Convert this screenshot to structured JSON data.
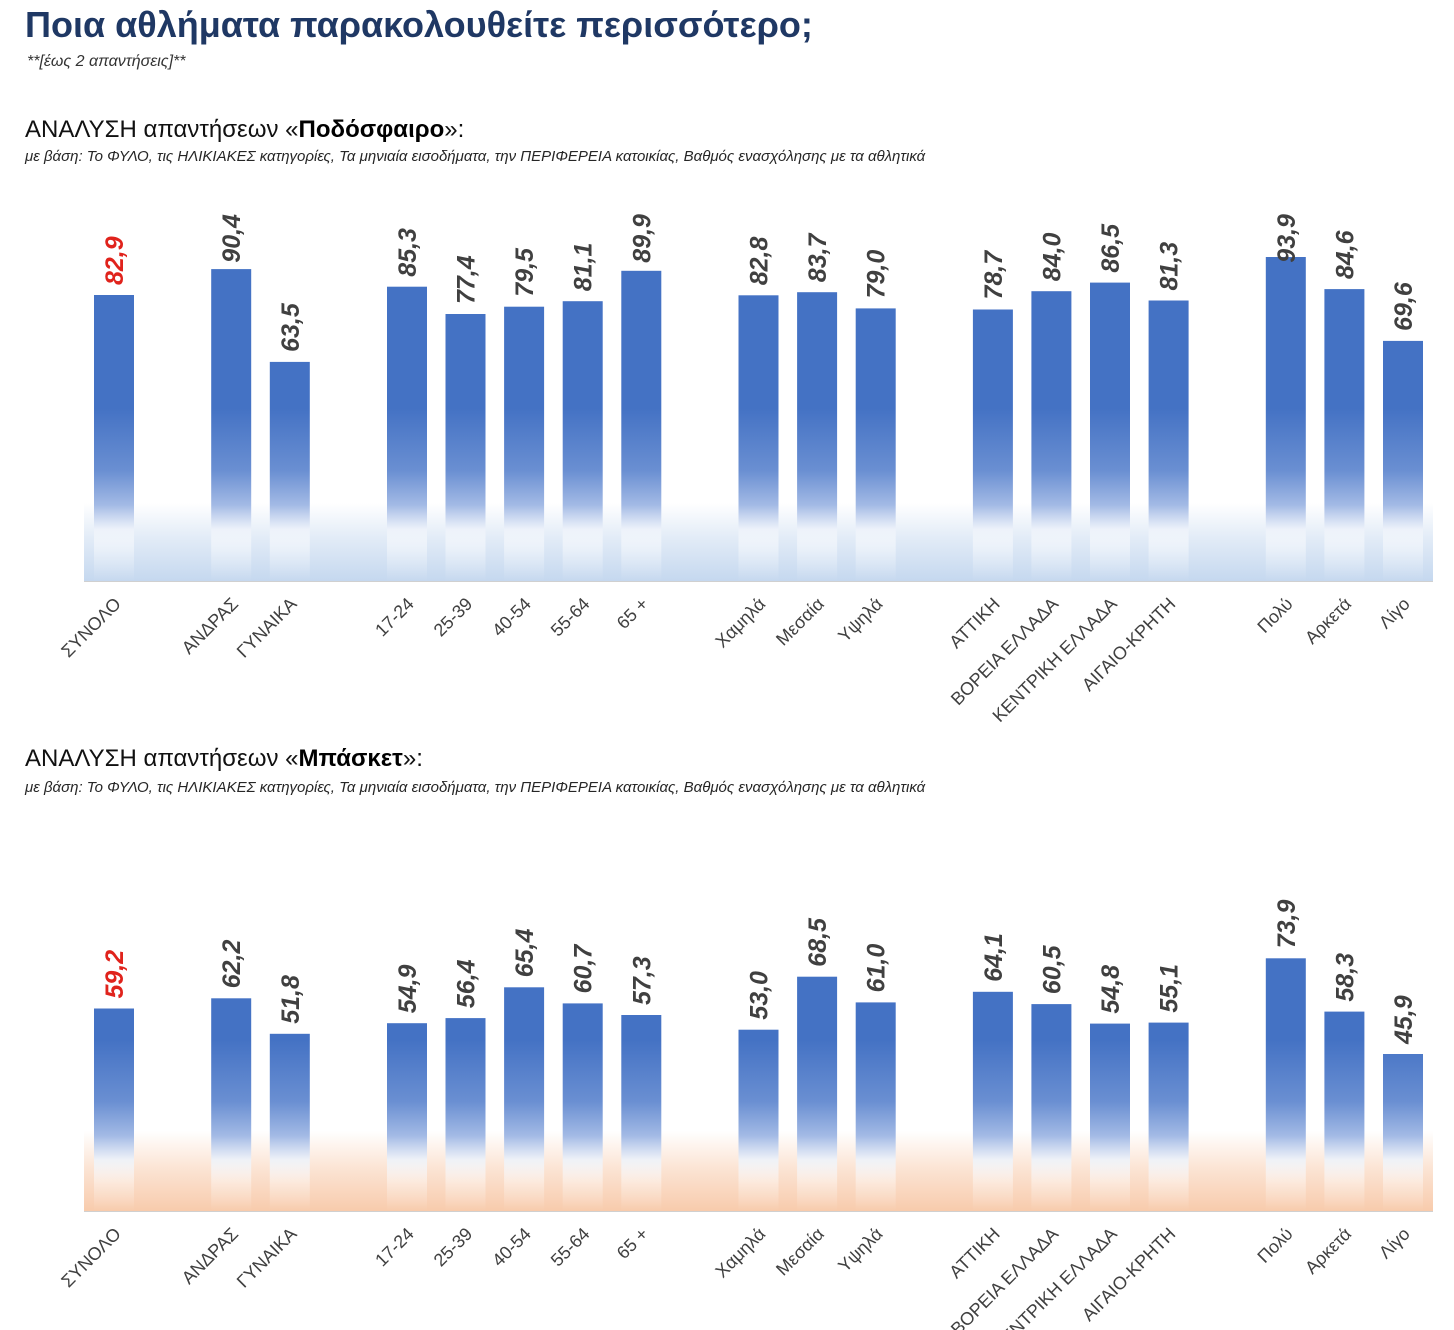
{
  "page": {
    "title": "Ποια αθλήματα παρακολουθείτε περισσότερο;",
    "note": "**[έως 2 απαντήσεις]**"
  },
  "colors": {
    "title": "#1f3864",
    "bar": "#4472c4",
    "value_label": "#404040",
    "total_label": "#e0231c",
    "category_label": "#404040"
  },
  "chart_data": [
    {
      "type": "bar",
      "title_prefix": "ΑΝΑΛΥΣΗ απαντήσεων «",
      "title_highlight": "Ποδόσφαιρο",
      "title_suffix": "»:",
      "subtitle": "με βάση: Το ΦΥΛΟ, τις ΗΛΙΚΙΑΚΕΣ κατηγορίες, Τα μηνιαία εισοδήματα, την ΠΕΡΙΦΕΡΕΙΑ κατοικίας, Βαθμός ενασχόλησης με τα αθλητικά",
      "xlabel": "",
      "ylabel": "",
      "ylim": [
        0,
        100
      ],
      "grid": false,
      "categories": [
        "ΣΥΝΟΛΟ",
        "ΑΝΔΡΑΣ",
        "ΓΥΝΑΙΚΑ",
        "17-24",
        "25-39",
        "40-54",
        "55-64",
        "65 +",
        "Χαμηλά",
        "Μεσαία",
        "Υψηλά",
        "ΑΤΤΙΚΗ",
        "ΒΟΡΕΙΑ ΕΛΛΑΔΑ",
        "ΚΕΝΤΡΙΚΗ ΕΛΛΑΔΑ",
        "ΑΙΓΑΙΟ-ΚΡΗΤΗ",
        "Πολύ",
        "Αρκετά",
        "Λίγο"
      ],
      "group_sizes": [
        1,
        2,
        5,
        3,
        4,
        3
      ],
      "values": [
        82.9,
        90.4,
        63.5,
        85.3,
        77.4,
        79.5,
        81.1,
        89.9,
        82.8,
        83.7,
        79.0,
        78.7,
        84.0,
        86.5,
        81.3,
        93.9,
        84.6,
        69.6
      ],
      "data_labels": [
        "82,9",
        "90,4",
        "63,5",
        "85,3",
        "77,4",
        "79,5",
        "81,1",
        "89,9",
        "82,8",
        "83,7",
        "79,0",
        "78,7",
        "84,0",
        "86,5",
        "81,3",
        "93,9",
        "84,6",
        "69,6"
      ],
      "highlight_index": 0,
      "band_color": "#c5d8ef"
    },
    {
      "type": "bar",
      "title_prefix": "ΑΝΑΛΥΣΗ απαντήσεων «",
      "title_highlight": "Μπάσκετ",
      "title_suffix": "»:",
      "subtitle": "με βάση: Το ΦΥΛΟ, τις ΗΛΙΚΙΑΚΕΣ κατηγορίες, Τα μηνιαία εισοδήματα, την ΠΕΡΙΦΕΡΕΙΑ κατοικίας, Βαθμός ενασχόλησης με τα αθλητικά",
      "xlabel": "",
      "ylabel": "",
      "ylim": [
        0,
        100
      ],
      "grid": false,
      "categories": [
        "ΣΥΝΟΛΟ",
        "ΑΝΔΡΑΣ",
        "ΓΥΝΑΙΚΑ",
        "17-24",
        "25-39",
        "40-54",
        "55-64",
        "65 +",
        "Χαμηλά",
        "Μεσαία",
        "Υψηλά",
        "ΑΤΤΙΚΗ",
        "ΒΟΡΕΙΑ ΕΛΛΑΔΑ",
        "ΚΕΝΤΡΙΚΗ ΕΛΛΑΔΑ",
        "ΑΙΓΑΙΟ-ΚΡΗΤΗ",
        "Πολύ",
        "Αρκετά",
        "Λίγο"
      ],
      "group_sizes": [
        1,
        2,
        5,
        3,
        4,
        3
      ],
      "values": [
        59.2,
        62.2,
        51.8,
        54.9,
        56.4,
        65.4,
        60.7,
        57.3,
        53.0,
        68.5,
        61.0,
        64.1,
        60.5,
        54.8,
        55.1,
        73.9,
        58.3,
        45.9
      ],
      "data_labels": [
        "59,2",
        "62,2",
        "51,8",
        "54,9",
        "56,4",
        "65,4",
        "60,7",
        "57,3",
        "53,0",
        "68,5",
        "61,0",
        "64,1",
        "60,5",
        "54,8",
        "55,1",
        "73,9",
        "58,3",
        "45,9"
      ],
      "highlight_index": 0,
      "band_color": "#f8cbac"
    }
  ]
}
